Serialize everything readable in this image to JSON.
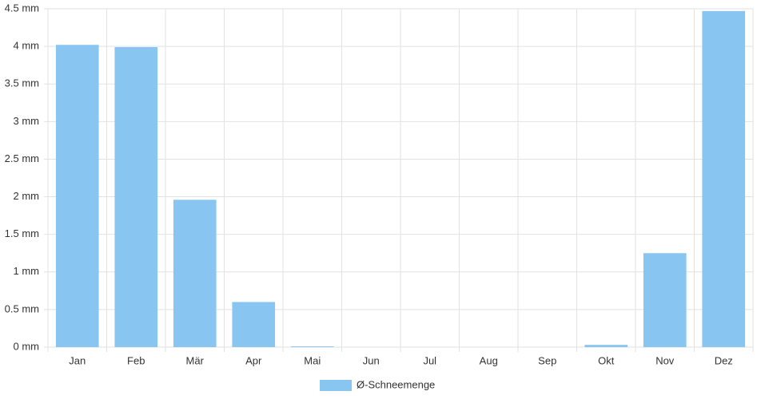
{
  "chart_data": {
    "type": "bar",
    "categories": [
      "Jan",
      "Feb",
      "Mär",
      "Apr",
      "Mai",
      "Jun",
      "Jul",
      "Aug",
      "Sep",
      "Okt",
      "Nov",
      "Dez"
    ],
    "series": [
      {
        "name": "Ø-Schneemenge",
        "color": "#88c5f1",
        "values": [
          4.02,
          3.99,
          1.96,
          0.6,
          0.01,
          0,
          0,
          0,
          0,
          0.03,
          1.25,
          4.47
        ]
      }
    ],
    "ylim": [
      0,
      4.5
    ],
    "yticks": [
      {
        "value": 0,
        "label": "0 mm"
      },
      {
        "value": 0.5,
        "label": "0.5 mm"
      },
      {
        "value": 1,
        "label": "1 mm"
      },
      {
        "value": 1.5,
        "label": "1.5 mm"
      },
      {
        "value": 2,
        "label": "2 mm"
      },
      {
        "value": 2.5,
        "label": "2.5 mm"
      },
      {
        "value": 3,
        "label": "3 mm"
      },
      {
        "value": 3.5,
        "label": "3.5 mm"
      },
      {
        "value": 4,
        "label": "4 mm"
      },
      {
        "value": 4.5,
        "label": "4.5 mm"
      }
    ],
    "grid": true,
    "legend": "bottom"
  }
}
